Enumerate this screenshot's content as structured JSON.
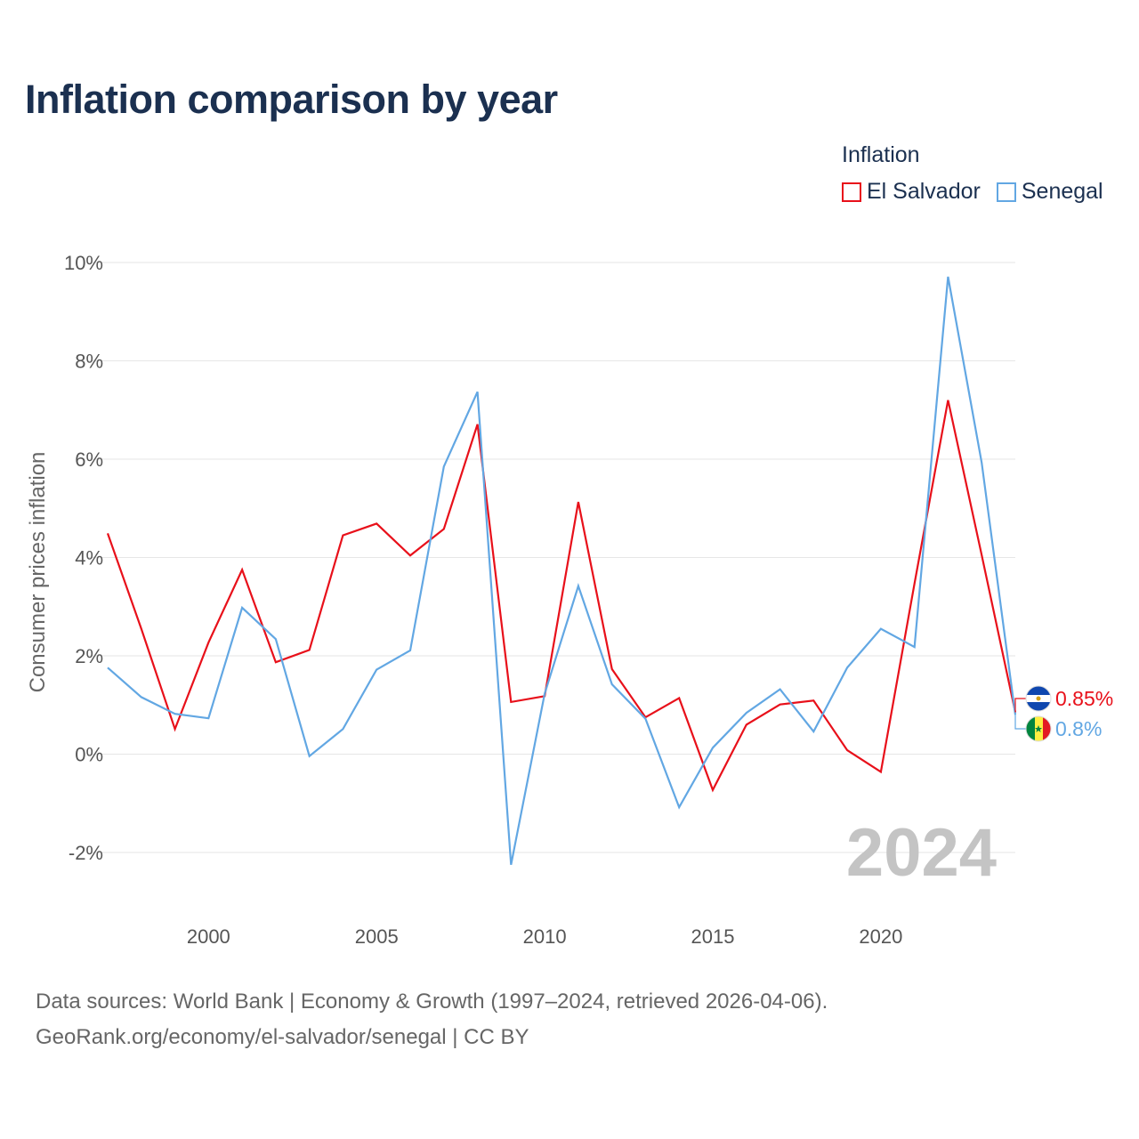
{
  "title": "Inflation comparison by year",
  "legend": {
    "title": "Inflation",
    "items": [
      {
        "label": "El Salvador",
        "color": "#e8101a"
      },
      {
        "label": "Senegal",
        "color": "#62a7e3"
      }
    ]
  },
  "footer": {
    "line1": "Data sources: World Bank | Economy & Growth (1997–2024, retrieved 2026-04-06).",
    "line2": "GeoRank.org/economy/el-salvador/senegal | CC BY"
  },
  "chart_data": {
    "type": "line",
    "title": "Inflation comparison by year",
    "xlabel": "",
    "ylabel": "Consumer prices inflation",
    "xlim": [
      1997,
      2024
    ],
    "ylim": [
      -2.8,
      10
    ],
    "y_ticks": [
      10,
      8,
      6,
      4,
      2,
      0,
      -2
    ],
    "y_tick_labels": [
      "10%",
      "8%",
      "6%",
      "4%",
      "2%",
      "0%",
      "-2%"
    ],
    "x_ticks": [
      2000,
      2005,
      2010,
      2015,
      2020
    ],
    "x_tick_labels": [
      "2000",
      "2005",
      "2010",
      "2015",
      "2020"
    ],
    "grid": true,
    "watermark_year": "2024",
    "x": [
      1997,
      1998,
      1999,
      2000,
      2001,
      2002,
      2003,
      2004,
      2005,
      2006,
      2007,
      2008,
      2009,
      2010,
      2011,
      2012,
      2013,
      2014,
      2015,
      2016,
      2017,
      2018,
      2019,
      2020,
      2021,
      2022,
      2023,
      2024
    ],
    "series": [
      {
        "name": "El Salvador",
        "color": "#e8101a",
        "values": [
          4.49,
          2.55,
          0.51,
          2.27,
          3.75,
          1.87,
          2.12,
          4.45,
          4.69,
          4.04,
          4.58,
          6.71,
          1.06,
          1.18,
          5.13,
          1.73,
          0.75,
          1.14,
          -0.73,
          0.6,
          1.01,
          1.09,
          0.08,
          -0.36,
          3.47,
          7.2,
          4.05,
          0.85
        ],
        "end_label": "0.85%"
      },
      {
        "name": "Senegal",
        "color": "#62a7e3",
        "values": [
          1.76,
          1.16,
          0.82,
          0.73,
          2.98,
          2.34,
          -0.04,
          0.51,
          1.72,
          2.11,
          5.85,
          7.37,
          -2.25,
          1.23,
          3.42,
          1.42,
          0.72,
          -1.08,
          0.13,
          0.84,
          1.32,
          0.46,
          1.76,
          2.55,
          2.18,
          9.71,
          5.93,
          0.8
        ],
        "end_label": "0.8%"
      }
    ]
  }
}
